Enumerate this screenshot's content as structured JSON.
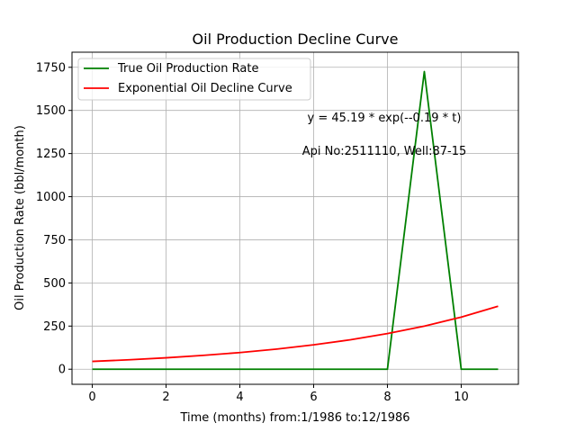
{
  "chart_data": {
    "type": "line",
    "title": "Oil Production Decline Curve",
    "xlabel": "Time (months) from:1/1986 to:12/1986",
    "ylabel": "Oil Production Rate (bbl/month)",
    "xlim": [
      -0.55,
      11.55
    ],
    "ylim": [
      -87.5,
      1837.5
    ],
    "x_ticks": [
      0,
      2,
      4,
      6,
      8,
      10
    ],
    "y_ticks": [
      0,
      250,
      500,
      750,
      1000,
      1250,
      1500,
      1750
    ],
    "grid": true,
    "legend_placement": "upper-left",
    "x": [
      0,
      1,
      2,
      3,
      4,
      5,
      6,
      7,
      8,
      9,
      10,
      11
    ],
    "series": [
      {
        "name": "True Oil Production Rate",
        "color": "#008000",
        "values": [
          0,
          0,
          0,
          0,
          0,
          0,
          0,
          0,
          0,
          1725,
          0,
          0
        ]
      },
      {
        "name": "Exponential Oil Decline Curve",
        "color": "#ff0000",
        "values": [
          45.19,
          54.64,
          66.07,
          79.9,
          96.6,
          116.8,
          141.2,
          170.7,
          206.4,
          249.6,
          301.8,
          364.9
        ]
      }
    ],
    "annotations": [
      {
        "text": "y = 45.19 * exp(--0.19 * t)"
      },
      {
        "text": "Api No:2511110, Well:87-15"
      }
    ]
  }
}
